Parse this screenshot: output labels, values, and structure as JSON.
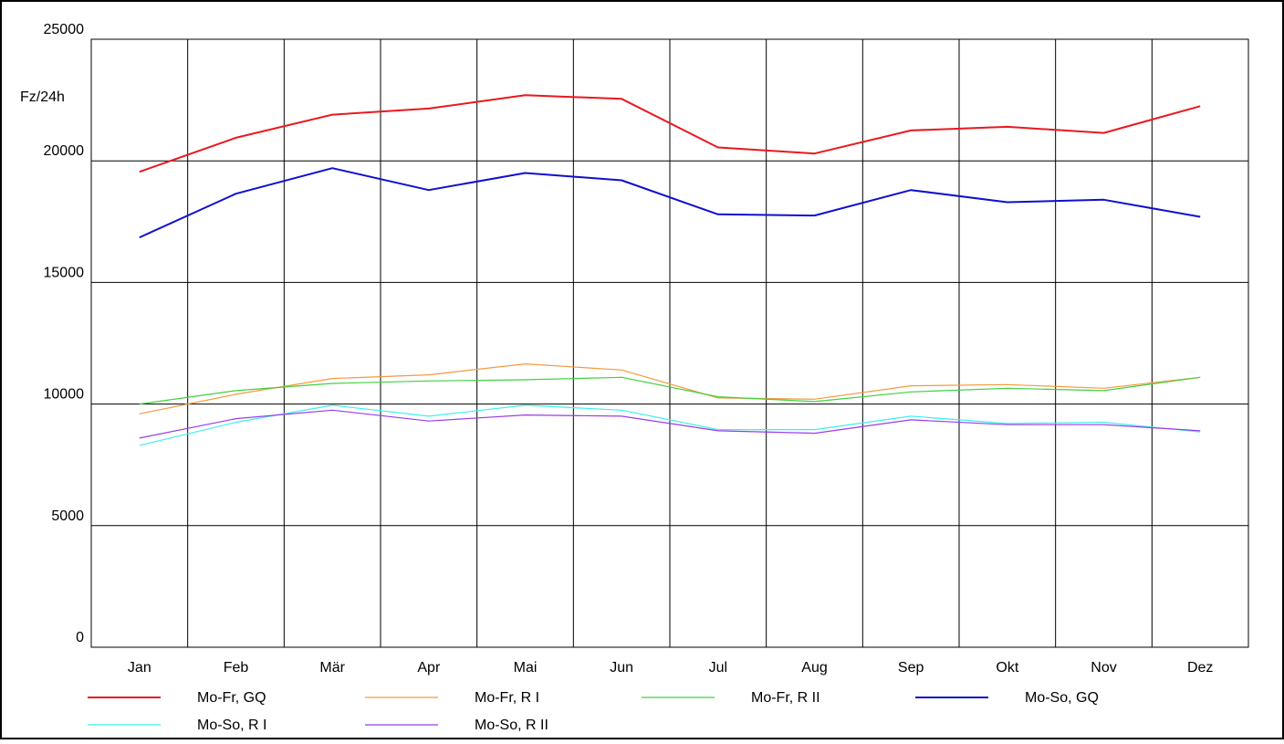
{
  "chart_data": {
    "type": "line",
    "title": "",
    "xlabel": "",
    "ylabel": "Fz/24h",
    "categories": [
      "Jan",
      "Feb",
      "Mär",
      "Apr",
      "Mai",
      "Jun",
      "Jul",
      "Aug",
      "Sep",
      "Okt",
      "Nov",
      "Dez"
    ],
    "ylim": [
      0,
      25000
    ],
    "yticks": [
      "0",
      "5000",
      "10000",
      "15000",
      "20000",
      "25000"
    ],
    "grid": true,
    "legend_position": "bottom",
    "series": [
      {
        "name": "Mo-Fr, GQ",
        "color": "#e8191f",
        "width": "thick",
        "values": [
          19550,
          20950,
          21900,
          22150,
          22700,
          22550,
          20550,
          20300,
          21250,
          21400,
          21150,
          22250
        ]
      },
      {
        "name": "Mo-Fr, R I",
        "color": "#f59a3c",
        "width": "thin",
        "values": [
          9600,
          10400,
          11050,
          11200,
          11650,
          11400,
          10250,
          10200,
          10750,
          10800,
          10650,
          11100
        ]
      },
      {
        "name": "Mo-Fr, R II",
        "color": "#3fd13f",
        "width": "thin",
        "values": [
          10000,
          10550,
          10850,
          10950,
          11000,
          11100,
          10300,
          10100,
          10500,
          10650,
          10550,
          11100
        ]
      },
      {
        "name": "Mo-So, GQ",
        "color": "#1010cc",
        "width": "thick",
        "values": [
          16850,
          18650,
          19700,
          18800,
          19500,
          19200,
          17800,
          17750,
          18800,
          18300,
          18400,
          17700
        ]
      },
      {
        "name": "Mo-So, R I",
        "color": "#3cf0f0",
        "width": "thin",
        "values": [
          8300,
          9250,
          9950,
          9500,
          9950,
          9750,
          8950,
          8950,
          9500,
          9200,
          9250,
          8850
        ]
      },
      {
        "name": "Mo-So, R II",
        "color": "#9a3ce6",
        "width": "thin",
        "values": [
          8600,
          9400,
          9750,
          9300,
          9550,
          9500,
          8900,
          8800,
          9350,
          9150,
          9150,
          8900
        ]
      }
    ]
  }
}
